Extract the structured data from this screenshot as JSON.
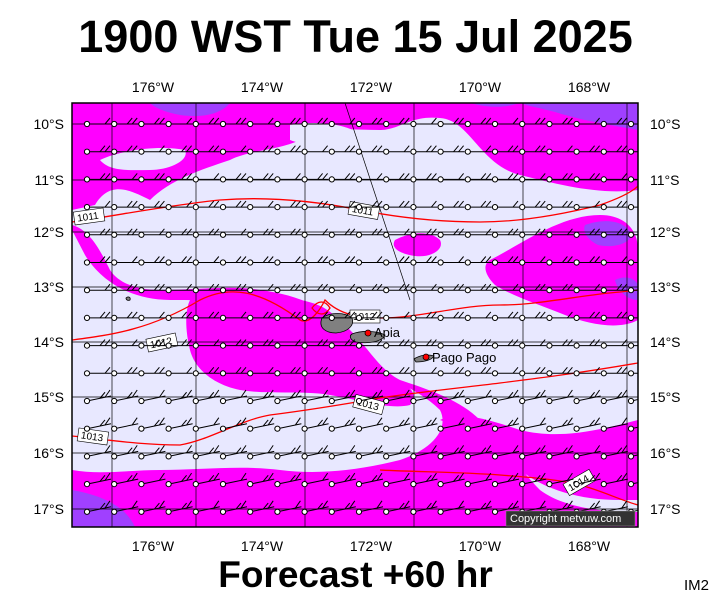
{
  "title": "1900 WST Tue 15 Jul 2025",
  "footer": "Forecast +60 hr",
  "image_tag": "IM2",
  "copyright": "Copyright metvuw.com",
  "longitude_labels": [
    "176°W",
    "174°W",
    "172°W",
    "170°W",
    "168°W"
  ],
  "latitude_labels": [
    "10°S",
    "11°S",
    "12°S",
    "13°S",
    "14°S",
    "15°S",
    "16°S",
    "17°S"
  ],
  "places": [
    {
      "name": "Apia",
      "lon": -171.77,
      "lat": -13.83
    },
    {
      "name": "Pago Pago",
      "lon": -170.7,
      "lat": -14.27
    }
  ],
  "isobar_labels": [
    "1011",
    "1011",
    "1012",
    "1012",
    "1013",
    "1013",
    "1014"
  ],
  "colors": {
    "background_shade": "#e8e8ff",
    "rain_magenta": "#ff00ff",
    "heavy_rain_purple": "#a040ff",
    "isobar": "#ff0000",
    "land": "#808080"
  }
}
